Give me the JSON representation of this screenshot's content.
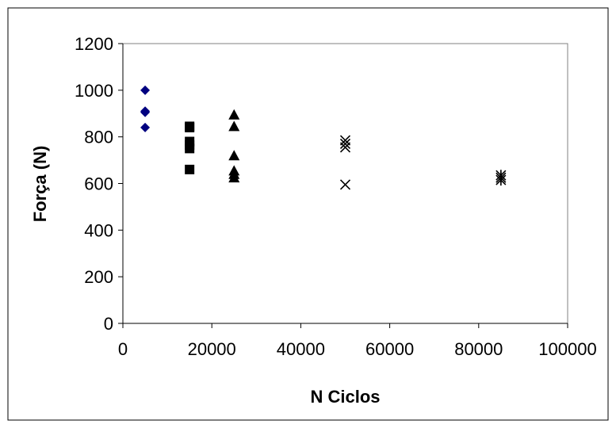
{
  "chart_data": {
    "type": "scatter",
    "title": "",
    "xlabel": "N Ciclos",
    "ylabel": "Força (N)",
    "xlim": [
      0,
      100000
    ],
    "ylim": [
      0,
      1200
    ],
    "x_ticks": [
      0,
      20000,
      40000,
      60000,
      80000,
      100000
    ],
    "y_ticks": [
      0,
      200,
      400,
      600,
      800,
      1000,
      1200
    ],
    "x_tick_labels": [
      "0",
      "20000",
      "40000",
      "60000",
      "80000",
      "100000"
    ],
    "y_tick_labels": [
      "0",
      "200",
      "400",
      "600",
      "800",
      "1000",
      "1200"
    ],
    "grid": false,
    "legend": "none",
    "series": [
      {
        "marker": "diamond",
        "color": "#000080",
        "x": [
          5000,
          5000,
          5000,
          5000
        ],
        "y": [
          1000,
          910,
          905,
          840
        ]
      },
      {
        "marker": "square",
        "color": "#000000",
        "x": [
          15000,
          15000,
          15000,
          15000,
          15000,
          15000
        ],
        "y": [
          845,
          840,
          780,
          765,
          750,
          660
        ]
      },
      {
        "marker": "triangle",
        "color": "#000000",
        "x": [
          25000,
          25000,
          25000,
          25000,
          25000,
          25000
        ],
        "y": [
          895,
          845,
          720,
          655,
          640,
          625
        ]
      },
      {
        "marker": "x",
        "color": "#000000",
        "x": [
          50000,
          50000,
          50000,
          50000
        ],
        "y": [
          785,
          770,
          755,
          595
        ]
      },
      {
        "marker": "star",
        "color": "#000000",
        "x": [
          85000,
          85000,
          85000
        ],
        "y": [
          635,
          625,
          615
        ]
      }
    ]
  }
}
